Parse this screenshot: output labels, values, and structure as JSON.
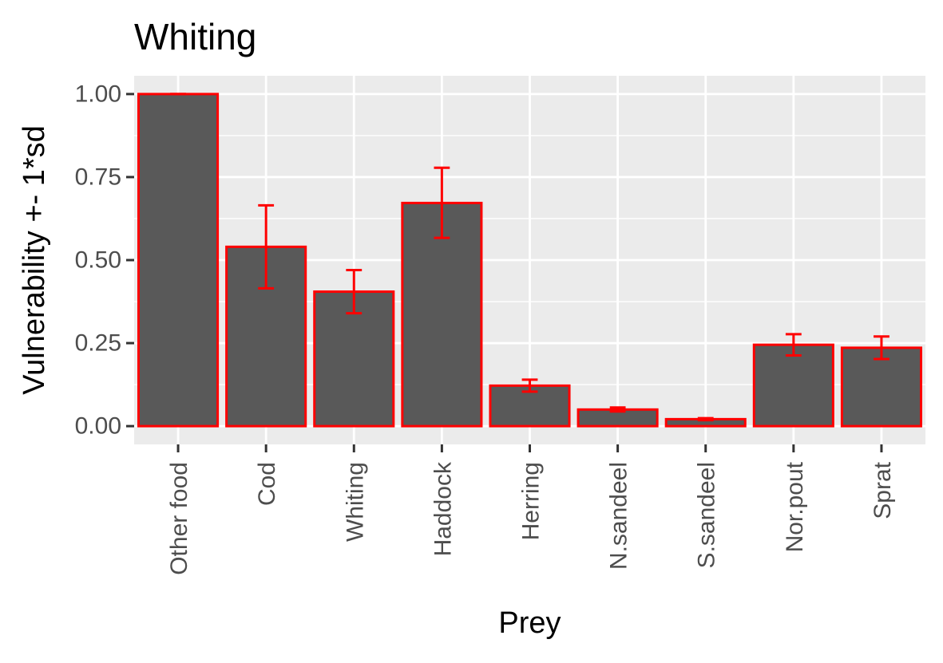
{
  "chart_data": {
    "type": "bar",
    "title": "Whiting",
    "xlabel": "Prey",
    "ylabel": "Vulnerability +- 1*sd",
    "categories": [
      "Other food",
      "Cod",
      "Whiting",
      "Haddock",
      "Herring",
      "N.sandeel",
      "S.sandeel",
      "Nor.pout",
      "Sprat"
    ],
    "values": [
      1.0,
      0.54,
      0.405,
      0.672,
      0.122,
      0.05,
      0.021,
      0.245,
      0.236
    ],
    "error_low": [
      1.0,
      0.415,
      0.34,
      0.567,
      0.104,
      0.044,
      0.018,
      0.213,
      0.202
    ],
    "error_high": [
      1.0,
      0.665,
      0.47,
      0.778,
      0.14,
      0.056,
      0.024,
      0.277,
      0.27
    ],
    "ylim": [
      -0.055,
      1.055
    ],
    "yticks": [
      0.0,
      0.25,
      0.5,
      0.75,
      1.0
    ],
    "ytick_labels": [
      "0.00",
      "0.25",
      "0.50",
      "0.75",
      "1.00"
    ],
    "grid": true,
    "legend": "none",
    "colors": {
      "bar_fill": "#595959",
      "bar_outline": "#ff0000",
      "error_bar": "#ff0000",
      "panel_background": "#ebebeb",
      "grid_line": "#ffffff",
      "tick_color": "#333333"
    }
  }
}
